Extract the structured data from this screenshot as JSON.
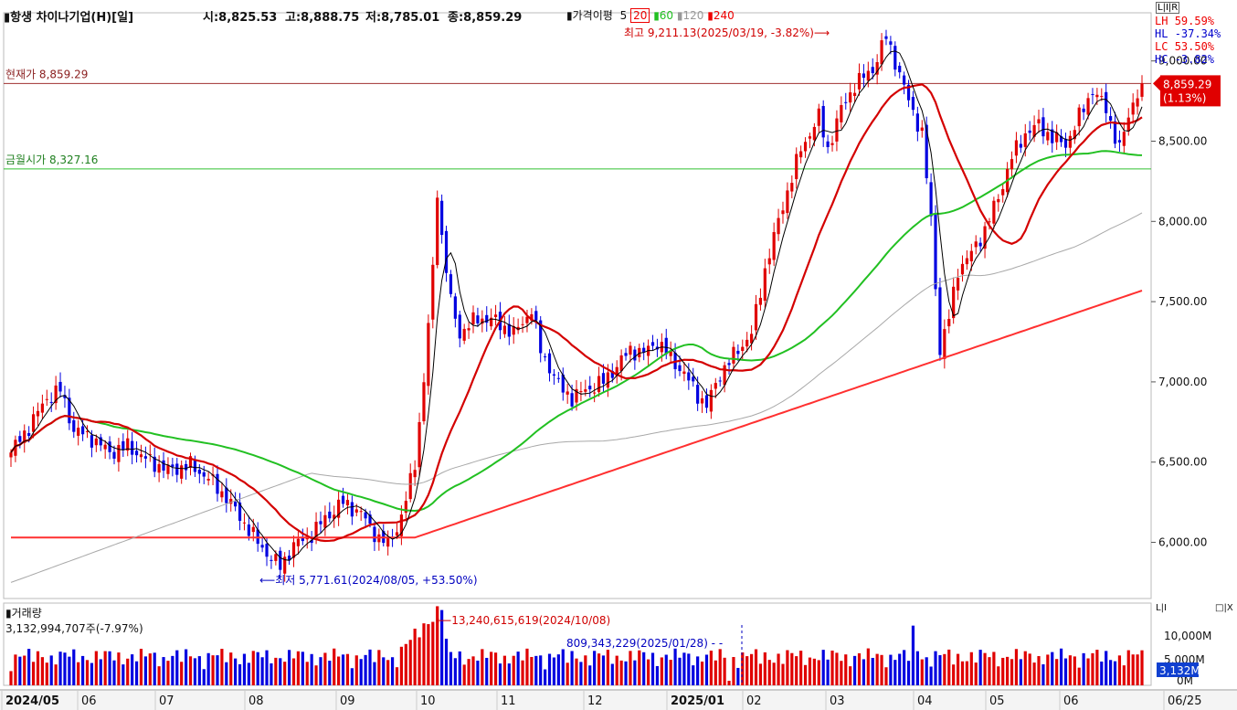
{
  "header": {
    "symbol_label": "항생 차이나기업(H)[일]",
    "open": "시:8,825.53",
    "high": "고:8,888.75",
    "low": "저:8,785.01",
    "close": "종:8,859.29",
    "ma_label": "가격이평",
    "ma_periods": [
      "5",
      "20",
      "60",
      "120",
      "240"
    ]
  },
  "stats": [
    {
      "label": "LH",
      "value": "59.59%",
      "color": "#e00000"
    },
    {
      "label": "HL",
      "value": "-37.34%",
      "color": "#0000d0"
    },
    {
      "label": "LC",
      "value": "53.50%",
      "color": "#e00000"
    },
    {
      "label": "HC",
      "value": "-3.82%",
      "color": "#0000d0"
    }
  ],
  "annotations": {
    "current_price": "현재가 8,859.29",
    "friday_close": "금월시가 8,327.16",
    "high_marker": "최고 9,211.13(2025/03/19, -3.82%)⟶",
    "low_marker": "⟵최저 5,771.61(2024/08/05, +53.50%)",
    "price_badge": "8,859.29",
    "price_badge_pct": "(1.13%)",
    "vol_high_marker": "⟵13,240,615,619(2024/10/08)",
    "vol_low_marker": "809,343,229(2025/01/28) - -"
  },
  "volume_panel": {
    "title": "거래량",
    "value": "3,132,994,707주(-7.97%)",
    "badge": "3,132M",
    "axis_labels": [
      "10,000M",
      "5,000M",
      "0M"
    ]
  },
  "toggles": {
    "top": "L|I|R",
    "bottom_left": "L|I",
    "bottom_right": "□|X"
  },
  "chart_data": {
    "type": "candlestick",
    "yticks": [
      "9,000.00",
      "8,500.00",
      "8,000.00",
      "7,500.00",
      "7,000.00",
      "6,500.00",
      "6,000.00"
    ],
    "ytick_values": [
      9000,
      8500,
      8000,
      7500,
      7000,
      6500,
      6000
    ],
    "ylim": [
      5650,
      9300
    ],
    "x_labels": [
      "2024/05",
      "06",
      "07",
      "08",
      "09",
      "10",
      "11",
      "12",
      "2025/01",
      "02",
      "03",
      "04",
      "05",
      "06",
      "06/25"
    ],
    "current_price": 8859.29,
    "month_open": 8327.16,
    "high": {
      "value": 9211.13,
      "date": "2025/03/19"
    },
    "low": {
      "value": 5771.61,
      "date": "2024/08/05"
    },
    "close_path": [
      [
        0,
        6560
      ],
      [
        4,
        6720
      ],
      [
        8,
        6900
      ],
      [
        11,
        6950
      ],
      [
        14,
        6700
      ],
      [
        18,
        6650
      ],
      [
        22,
        6560
      ],
      [
        26,
        6600
      ],
      [
        30,
        6520
      ],
      [
        35,
        6450
      ],
      [
        40,
        6480
      ],
      [
        44,
        6400
      ],
      [
        48,
        6280
      ],
      [
        52,
        6120
      ],
      [
        55,
        6000
      ],
      [
        58,
        5900
      ],
      [
        60,
        5850
      ],
      [
        63,
        5980
      ],
      [
        67,
        6050
      ],
      [
        70,
        6150
      ],
      [
        74,
        6250
      ],
      [
        78,
        6180
      ],
      [
        82,
        6020
      ],
      [
        84,
        5990
      ],
      [
        87,
        6150
      ],
      [
        90,
        6500
      ],
      [
        92,
        7000
      ],
      [
        94,
        7700
      ],
      [
        95,
        8200
      ],
      [
        96,
        7900
      ],
      [
        98,
        7500
      ],
      [
        100,
        7300
      ],
      [
        104,
        7400
      ],
      [
        108,
        7380
      ],
      [
        112,
        7300
      ],
      [
        116,
        7450
      ],
      [
        118,
        7200
      ],
      [
        122,
        6980
      ],
      [
        125,
        6900
      ],
      [
        128,
        6950
      ],
      [
        132,
        7000
      ],
      [
        135,
        7100
      ],
      [
        138,
        7200
      ],
      [
        141,
        7180
      ],
      [
        144,
        7250
      ],
      [
        147,
        7150
      ],
      [
        150,
        7050
      ],
      [
        153,
        6920
      ],
      [
        155,
        6850
      ],
      [
        158,
        7050
      ],
      [
        162,
        7200
      ],
      [
        165,
        7300
      ],
      [
        168,
        7700
      ],
      [
        172,
        8100
      ],
      [
        176,
        8450
      ],
      [
        180,
        8650
      ],
      [
        182,
        8450
      ],
      [
        185,
        8700
      ],
      [
        188,
        8850
      ],
      [
        192,
        8950
      ],
      [
        195,
        9150
      ],
      [
        197,
        9000
      ],
      [
        200,
        8750
      ],
      [
        203,
        8550
      ],
      [
        205,
        8000
      ],
      [
        207,
        7200
      ],
      [
        209,
        7400
      ],
      [
        211,
        7700
      ],
      [
        214,
        7800
      ],
      [
        217,
        7950
      ],
      [
        220,
        8150
      ],
      [
        223,
        8400
      ],
      [
        226,
        8550
      ],
      [
        229,
        8600
      ],
      [
        232,
        8520
      ],
      [
        235,
        8480
      ],
      [
        238,
        8650
      ],
      [
        241,
        8820
      ],
      [
        244,
        8700
      ],
      [
        247,
        8450
      ],
      [
        250,
        8750
      ],
      [
        252,
        8859
      ]
    ],
    "ma5_color": "#000000",
    "ma20_color": "#d40000",
    "ma60_color": "#22c022",
    "ma120_color": "#a8a8a8",
    "ma240_color": "#ff3030",
    "up_color": "#e00000",
    "down_color": "#0000e0"
  }
}
